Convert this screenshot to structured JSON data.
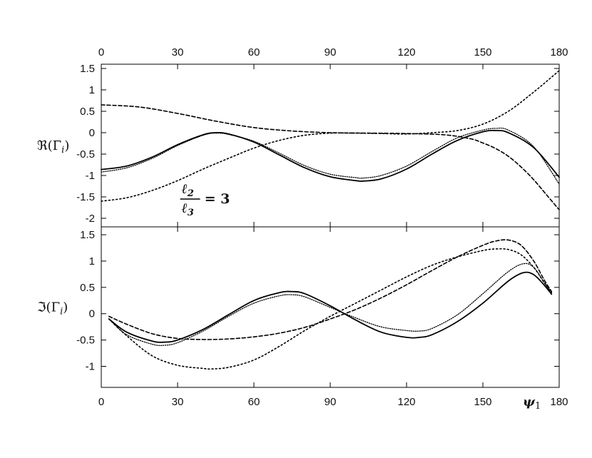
{
  "chart_data": [
    {
      "type": "line",
      "panel": "top",
      "ylabel": "ℜ(Γ",
      "ylabel_sub": "i",
      "ylabel_close": ")",
      "xlim": [
        0,
        180
      ],
      "ylim": [
        -2.2,
        1.6
      ],
      "yticks": [
        -2,
        -1.5,
        -1,
        -0.5,
        0,
        0.5,
        1,
        1.5
      ],
      "ytick_labels": [
        "-2",
        "-1.5",
        "-1",
        "-0.5",
        "0",
        "0.5",
        "1",
        "1.5"
      ],
      "xticks": [
        0,
        30,
        60,
        90,
        120,
        150,
        180
      ],
      "xtick_labels": [
        "0",
        "30",
        "60",
        "90",
        "120",
        "150",
        "180"
      ],
      "annotation": {
        "num": "ℓ",
        "num_sub": "2",
        "den": "ℓ",
        "den_sub": "3",
        "eq": "= 3",
        "x": 31,
        "y": -1.55
      },
      "series": [
        {
          "style": "solid",
          "x": [
            0,
            10,
            20,
            30,
            40,
            45,
            50,
            60,
            70,
            80,
            90,
            100,
            103,
            110,
            120,
            130,
            140,
            150,
            155,
            160,
            170,
            180
          ],
          "y": [
            -0.86,
            -0.78,
            -0.57,
            -0.28,
            -0.05,
            0.0,
            -0.03,
            -0.22,
            -0.52,
            -0.82,
            -1.03,
            -1.12,
            -1.13,
            -1.08,
            -0.85,
            -0.5,
            -0.18,
            0.02,
            0.05,
            0.0,
            -0.35,
            -1.04
          ]
        },
        {
          "style": "dotted-fine",
          "x": [
            0,
            10,
            20,
            30,
            40,
            45,
            50,
            60,
            70,
            80,
            90,
            100,
            103,
            110,
            120,
            130,
            140,
            150,
            155,
            160,
            170,
            180
          ],
          "y": [
            -0.92,
            -0.82,
            -0.6,
            -0.3,
            -0.06,
            -0.01,
            -0.04,
            -0.2,
            -0.48,
            -0.77,
            -0.97,
            -1.05,
            -1.06,
            -1.0,
            -0.78,
            -0.44,
            -0.12,
            0.06,
            0.1,
            0.06,
            -0.33,
            -1.2
          ]
        },
        {
          "style": "dashed",
          "x": [
            0,
            15,
            30,
            45,
            60,
            75,
            90,
            105,
            120,
            135,
            145,
            150,
            155,
            160,
            165,
            170,
            175,
            180
          ],
          "y": [
            0.65,
            0.6,
            0.45,
            0.27,
            0.12,
            0.04,
            0.0,
            -0.01,
            -0.02,
            -0.05,
            -0.14,
            -0.24,
            -0.37,
            -0.55,
            -0.8,
            -1.1,
            -1.45,
            -1.8
          ]
        },
        {
          "style": "dotted-coarse",
          "x": [
            0,
            10,
            20,
            30,
            40,
            50,
            60,
            70,
            80,
            90,
            100,
            110,
            120,
            130,
            140,
            150,
            160,
            170,
            180
          ],
          "y": [
            -1.6,
            -1.52,
            -1.35,
            -1.12,
            -0.85,
            -0.6,
            -0.36,
            -0.18,
            -0.06,
            -0.01,
            -0.01,
            -0.02,
            -0.03,
            0.0,
            0.05,
            0.2,
            0.5,
            0.95,
            1.45
          ]
        }
      ]
    },
    {
      "type": "line",
      "panel": "bottom",
      "ylabel": "ℑ(Γ",
      "ylabel_sub": "i",
      "ylabel_close": ")",
      "xlabel": "ψ",
      "xlabel_sub": "1",
      "xlim": [
        0,
        180
      ],
      "ylim": [
        -1.4,
        1.65
      ],
      "yticks": [
        -1,
        -0.5,
        0,
        0.5,
        1,
        1.5
      ],
      "ytick_labels": [
        "-1",
        "-0.5",
        "0",
        "0.5",
        "1",
        "1.5"
      ],
      "xticks": [
        0,
        30,
        60,
        90,
        120,
        150,
        180
      ],
      "xtick_labels": [
        "0",
        "30",
        "60",
        "90",
        "120",
        "150",
        "180"
      ],
      "series": [
        {
          "style": "solid",
          "x": [
            3,
            10,
            20,
            25,
            30,
            40,
            50,
            60,
            70,
            75,
            80,
            90,
            100,
            110,
            120,
            125,
            130,
            140,
            150,
            160,
            166,
            170,
            174,
            177
          ],
          "y": [
            -0.1,
            -0.35,
            -0.52,
            -0.54,
            -0.5,
            -0.3,
            -0.02,
            0.25,
            0.4,
            0.42,
            0.38,
            0.15,
            -0.12,
            -0.35,
            -0.45,
            -0.45,
            -0.4,
            -0.15,
            0.2,
            0.62,
            0.78,
            0.74,
            0.55,
            0.37
          ]
        },
        {
          "style": "dotted-fine",
          "x": [
            3,
            10,
            20,
            25,
            30,
            40,
            50,
            60,
            70,
            75,
            80,
            90,
            100,
            110,
            120,
            125,
            130,
            140,
            150,
            160,
            166,
            170,
            174,
            177
          ],
          "y": [
            -0.1,
            -0.4,
            -0.58,
            -0.6,
            -0.55,
            -0.33,
            -0.05,
            0.2,
            0.34,
            0.36,
            0.32,
            0.12,
            -0.08,
            -0.25,
            -0.32,
            -0.33,
            -0.28,
            -0.02,
            0.38,
            0.8,
            0.95,
            0.88,
            0.6,
            0.4
          ]
        },
        {
          "style": "dashed",
          "x": [
            3,
            10,
            20,
            30,
            40,
            50,
            60,
            70,
            80,
            90,
            100,
            110,
            120,
            130,
            140,
            150,
            155,
            160,
            165,
            170,
            174,
            177
          ],
          "y": [
            -0.05,
            -0.2,
            -0.38,
            -0.47,
            -0.49,
            -0.48,
            -0.44,
            -0.37,
            -0.26,
            -0.1,
            0.08,
            0.3,
            0.55,
            0.82,
            1.08,
            1.3,
            1.38,
            1.4,
            1.3,
            1.0,
            0.65,
            0.42
          ]
        },
        {
          "style": "dotted-coarse",
          "x": [
            3,
            10,
            20,
            30,
            40,
            43,
            50,
            60,
            70,
            80,
            90,
            100,
            110,
            120,
            130,
            140,
            150,
            155,
            160,
            165,
            170,
            174,
            177
          ],
          "y": [
            -0.1,
            -0.42,
            -0.8,
            -0.98,
            -1.04,
            -1.05,
            -1.02,
            -0.88,
            -0.62,
            -0.32,
            -0.05,
            0.2,
            0.45,
            0.7,
            0.92,
            1.08,
            1.2,
            1.23,
            1.22,
            1.12,
            0.88,
            0.6,
            0.4
          ]
        }
      ]
    }
  ]
}
